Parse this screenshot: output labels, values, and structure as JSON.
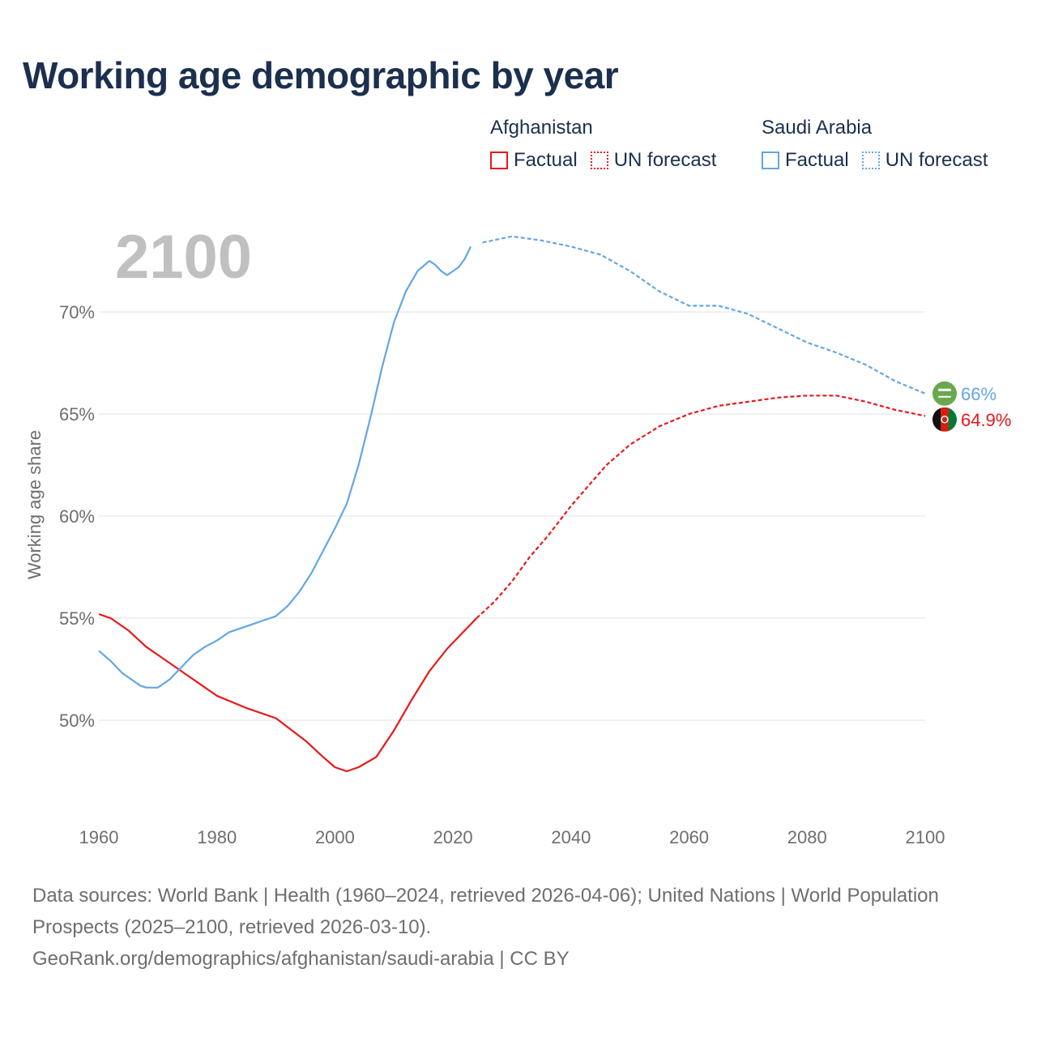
{
  "chart_data": {
    "type": "line",
    "title": "Working age demographic by year",
    "ylabel": "Working age share",
    "xlabel": "",
    "current_year_label": "2100",
    "xlim": [
      1960,
      2100
    ],
    "ylim": [
      46,
      74
    ],
    "x_ticks": [
      1960,
      1980,
      2000,
      2020,
      2040,
      2060,
      2080,
      2100
    ],
    "x_tick_labels": [
      "1960",
      "1980",
      "2000",
      "2020",
      "2040",
      "2060",
      "2080",
      "2100"
    ],
    "y_ticks": [
      50,
      55,
      60,
      65,
      70
    ],
    "y_tick_labels": [
      "50%",
      "55%",
      "60%",
      "65%",
      "70%"
    ],
    "grid": true,
    "factual_end_year": 2024,
    "legend": {
      "position": "top-right",
      "groups": [
        {
          "title": "Afghanistan",
          "factual": "Factual",
          "forecast": "UN forecast",
          "color": "#e8181b"
        },
        {
          "title": "Saudi Arabia",
          "factual": "Factual",
          "forecast": "UN forecast",
          "color": "#63a6e3"
        }
      ]
    },
    "series": [
      {
        "name": "Afghanistan",
        "color": "#e8181b",
        "end_label": "64.9%",
        "flag": "afghanistan-flag",
        "points": [
          [
            1960,
            55.2
          ],
          [
            1962,
            55.0
          ],
          [
            1965,
            54.4
          ],
          [
            1968,
            53.6
          ],
          [
            1970,
            53.2
          ],
          [
            1975,
            52.2
          ],
          [
            1980,
            51.2
          ],
          [
            1985,
            50.6
          ],
          [
            1990,
            50.1
          ],
          [
            1995,
            49.0
          ],
          [
            1998,
            48.2
          ],
          [
            2000,
            47.7
          ],
          [
            2002,
            47.5
          ],
          [
            2004,
            47.7
          ],
          [
            2007,
            48.2
          ],
          [
            2010,
            49.5
          ],
          [
            2013,
            51.0
          ],
          [
            2016,
            52.4
          ],
          [
            2019,
            53.5
          ],
          [
            2022,
            54.4
          ],
          [
            2024,
            55.0
          ],
          [
            2027,
            55.8
          ],
          [
            2030,
            56.8
          ],
          [
            2033,
            58.0
          ],
          [
            2036,
            59.0
          ],
          [
            2040,
            60.5
          ],
          [
            2043,
            61.5
          ],
          [
            2046,
            62.5
          ],
          [
            2050,
            63.5
          ],
          [
            2055,
            64.4
          ],
          [
            2060,
            65.0
          ],
          [
            2065,
            65.4
          ],
          [
            2070,
            65.6
          ],
          [
            2075,
            65.8
          ],
          [
            2080,
            65.9
          ],
          [
            2085,
            65.9
          ],
          [
            2090,
            65.6
          ],
          [
            2095,
            65.2
          ],
          [
            2100,
            64.9
          ]
        ]
      },
      {
        "name": "Saudi Arabia",
        "color": "#63a6e3",
        "end_label": "66%",
        "flag": "saudi-arabia-flag",
        "points": [
          [
            1960,
            53.4
          ],
          [
            1962,
            52.9
          ],
          [
            1964,
            52.3
          ],
          [
            1966,
            51.9
          ],
          [
            1967,
            51.7
          ],
          [
            1968,
            51.6
          ],
          [
            1970,
            51.6
          ],
          [
            1972,
            52.0
          ],
          [
            1974,
            52.6
          ],
          [
            1976,
            53.2
          ],
          [
            1978,
            53.6
          ],
          [
            1980,
            53.9
          ],
          [
            1982,
            54.3
          ],
          [
            1984,
            54.5
          ],
          [
            1986,
            54.7
          ],
          [
            1988,
            54.9
          ],
          [
            1990,
            55.1
          ],
          [
            1992,
            55.6
          ],
          [
            1994,
            56.3
          ],
          [
            1996,
            57.2
          ],
          [
            1998,
            58.3
          ],
          [
            2000,
            59.4
          ],
          [
            2002,
            60.6
          ],
          [
            2004,
            62.5
          ],
          [
            2006,
            64.8
          ],
          [
            2008,
            67.3
          ],
          [
            2010,
            69.5
          ],
          [
            2012,
            71.0
          ],
          [
            2014,
            72.0
          ],
          [
            2016,
            72.5
          ],
          [
            2017,
            72.3
          ],
          [
            2018,
            72.0
          ],
          [
            2019,
            71.8
          ],
          [
            2021,
            72.2
          ],
          [
            2022,
            72.6
          ],
          [
            2023,
            73.2
          ],
          [
            2025,
            73.4
          ],
          [
            2030,
            73.7
          ],
          [
            2035,
            73.5
          ],
          [
            2040,
            73.2
          ],
          [
            2045,
            72.8
          ],
          [
            2050,
            72.0
          ],
          [
            2055,
            71.0
          ],
          [
            2060,
            70.3
          ],
          [
            2065,
            70.3
          ],
          [
            2070,
            69.9
          ],
          [
            2075,
            69.2
          ],
          [
            2080,
            68.5
          ],
          [
            2085,
            68.0
          ],
          [
            2090,
            67.4
          ],
          [
            2095,
            66.6
          ],
          [
            2100,
            66.0
          ]
        ]
      }
    ]
  },
  "footer": {
    "sources": "Data sources: World Bank | Health (1960–2024, retrieved 2026-04-06); United Nations | World Population Prospects (2025–2100, retrieved 2026-03-10).",
    "credit": "GeoRank.org/demographics/afghanistan/saudi-arabia | CC BY"
  }
}
